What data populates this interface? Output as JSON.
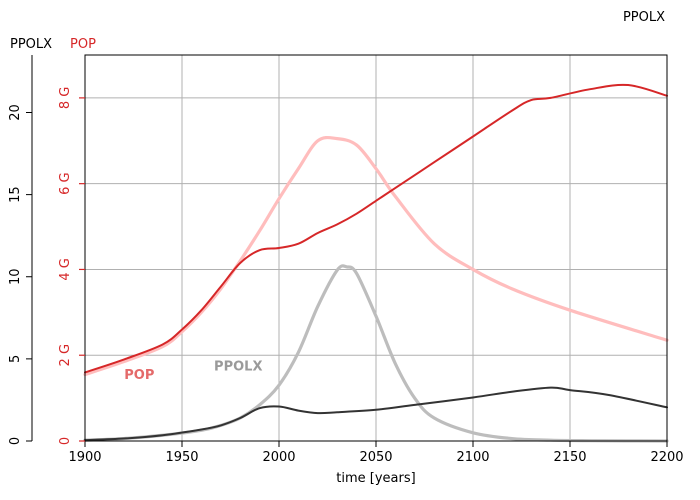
{
  "corner_label": "PPOLX",
  "axis_labels": {
    "left_outer": "PPOLX",
    "left_inner": "POP"
  },
  "colors": {
    "pop": "#d62728",
    "pop_light": "#ffbdbd",
    "ppolx": "#333333",
    "ppolx_light": "#bdbdbd",
    "grid": "#b0b0b0",
    "axis": "#000000"
  },
  "chart_data": {
    "type": "line",
    "title": "",
    "xlabel": "time [years]",
    "xlim": [
      1900,
      2200
    ],
    "x_ticks": [
      1900,
      1950,
      2000,
      2050,
      2100,
      2150,
      2200
    ],
    "x_tick_labels": [
      "1900",
      "1950",
      "2000",
      "2050",
      "2100",
      "2150",
      "2200"
    ],
    "grid": true,
    "y_axes": [
      {
        "id": "ppolx",
        "label": "PPOLX",
        "color": "#000000",
        "lim": [
          0,
          23.5
        ],
        "ticks": [
          0,
          5,
          10,
          15,
          20
        ],
        "tick_labels": [
          "0",
          "5",
          "10",
          "15",
          "20"
        ]
      },
      {
        "id": "pop",
        "label": "POP",
        "color": "#d62728",
        "lim": [
          0,
          9.0
        ],
        "ticks": [
          0,
          2,
          4,
          6,
          8
        ],
        "tick_labels": [
          "0",
          "2 G",
          "4 G",
          "6 G",
          "8 G"
        ]
      }
    ],
    "series": [
      {
        "name": "POP",
        "axis": "pop",
        "color": "#d62728",
        "x": [
          1900,
          1920,
          1940,
          1950,
          1960,
          1970,
          1980,
          1990,
          2000,
          2010,
          2020,
          2030,
          2040,
          2050,
          2060,
          2080,
          2100,
          2120,
          2130,
          2140,
          2160,
          2180,
          2200
        ],
        "y": [
          1.6,
          1.9,
          2.25,
          2.6,
          3.05,
          3.6,
          4.15,
          4.45,
          4.5,
          4.6,
          4.85,
          5.05,
          5.3,
          5.6,
          5.9,
          6.5,
          7.1,
          7.7,
          7.95,
          8.0,
          8.2,
          8.3,
          8.05
        ]
      },
      {
        "name": "",
        "axis": "pop",
        "color": "#ffbdbd",
        "x": [
          1900,
          1920,
          1940,
          1950,
          1960,
          1970,
          1980,
          1990,
          2000,
          2010,
          2020,
          2030,
          2040,
          2050,
          2060,
          2080,
          2100,
          2120,
          2150,
          2200
        ],
        "y": [
          1.55,
          1.85,
          2.2,
          2.55,
          3.0,
          3.55,
          4.2,
          4.9,
          5.65,
          6.35,
          7.0,
          7.05,
          6.9,
          6.35,
          5.7,
          4.6,
          4.0,
          3.55,
          3.05,
          2.35
        ]
      },
      {
        "name": "PPOLX",
        "axis": "ppolx",
        "color": "#333333",
        "x": [
          1900,
          1920,
          1940,
          1960,
          1970,
          1980,
          1990,
          2000,
          2010,
          2020,
          2030,
          2050,
          2070,
          2100,
          2120,
          2140,
          2150,
          2170,
          2200
        ],
        "y": [
          0.05,
          0.15,
          0.35,
          0.7,
          0.95,
          1.4,
          2.0,
          2.1,
          1.85,
          1.7,
          1.75,
          1.9,
          2.2,
          2.65,
          3.0,
          3.25,
          3.1,
          2.8,
          2.05
        ]
      },
      {
        "name": "",
        "axis": "ppolx",
        "color": "#bdbdbd",
        "x": [
          1900,
          1920,
          1940,
          1960,
          1970,
          1980,
          1990,
          2000,
          2010,
          2020,
          2030,
          2035,
          2040,
          2050,
          2060,
          2070,
          2080,
          2100,
          2120,
          2140,
          2160,
          2200
        ],
        "y": [
          0.05,
          0.15,
          0.35,
          0.65,
          0.95,
          1.4,
          2.2,
          3.4,
          5.4,
          8.2,
          10.4,
          10.6,
          10.2,
          7.6,
          4.7,
          2.6,
          1.4,
          0.5,
          0.15,
          0.05,
          0.02,
          0.0
        ]
      }
    ],
    "annotations": [
      {
        "text": "POP",
        "x": 1928,
        "axis": "pop",
        "y": 1.45,
        "color": "#e46a6a"
      },
      {
        "text": "PPOLX",
        "x": 1979,
        "axis": "ppolx",
        "y": 4.3,
        "color": "#9a9a9a"
      }
    ]
  }
}
